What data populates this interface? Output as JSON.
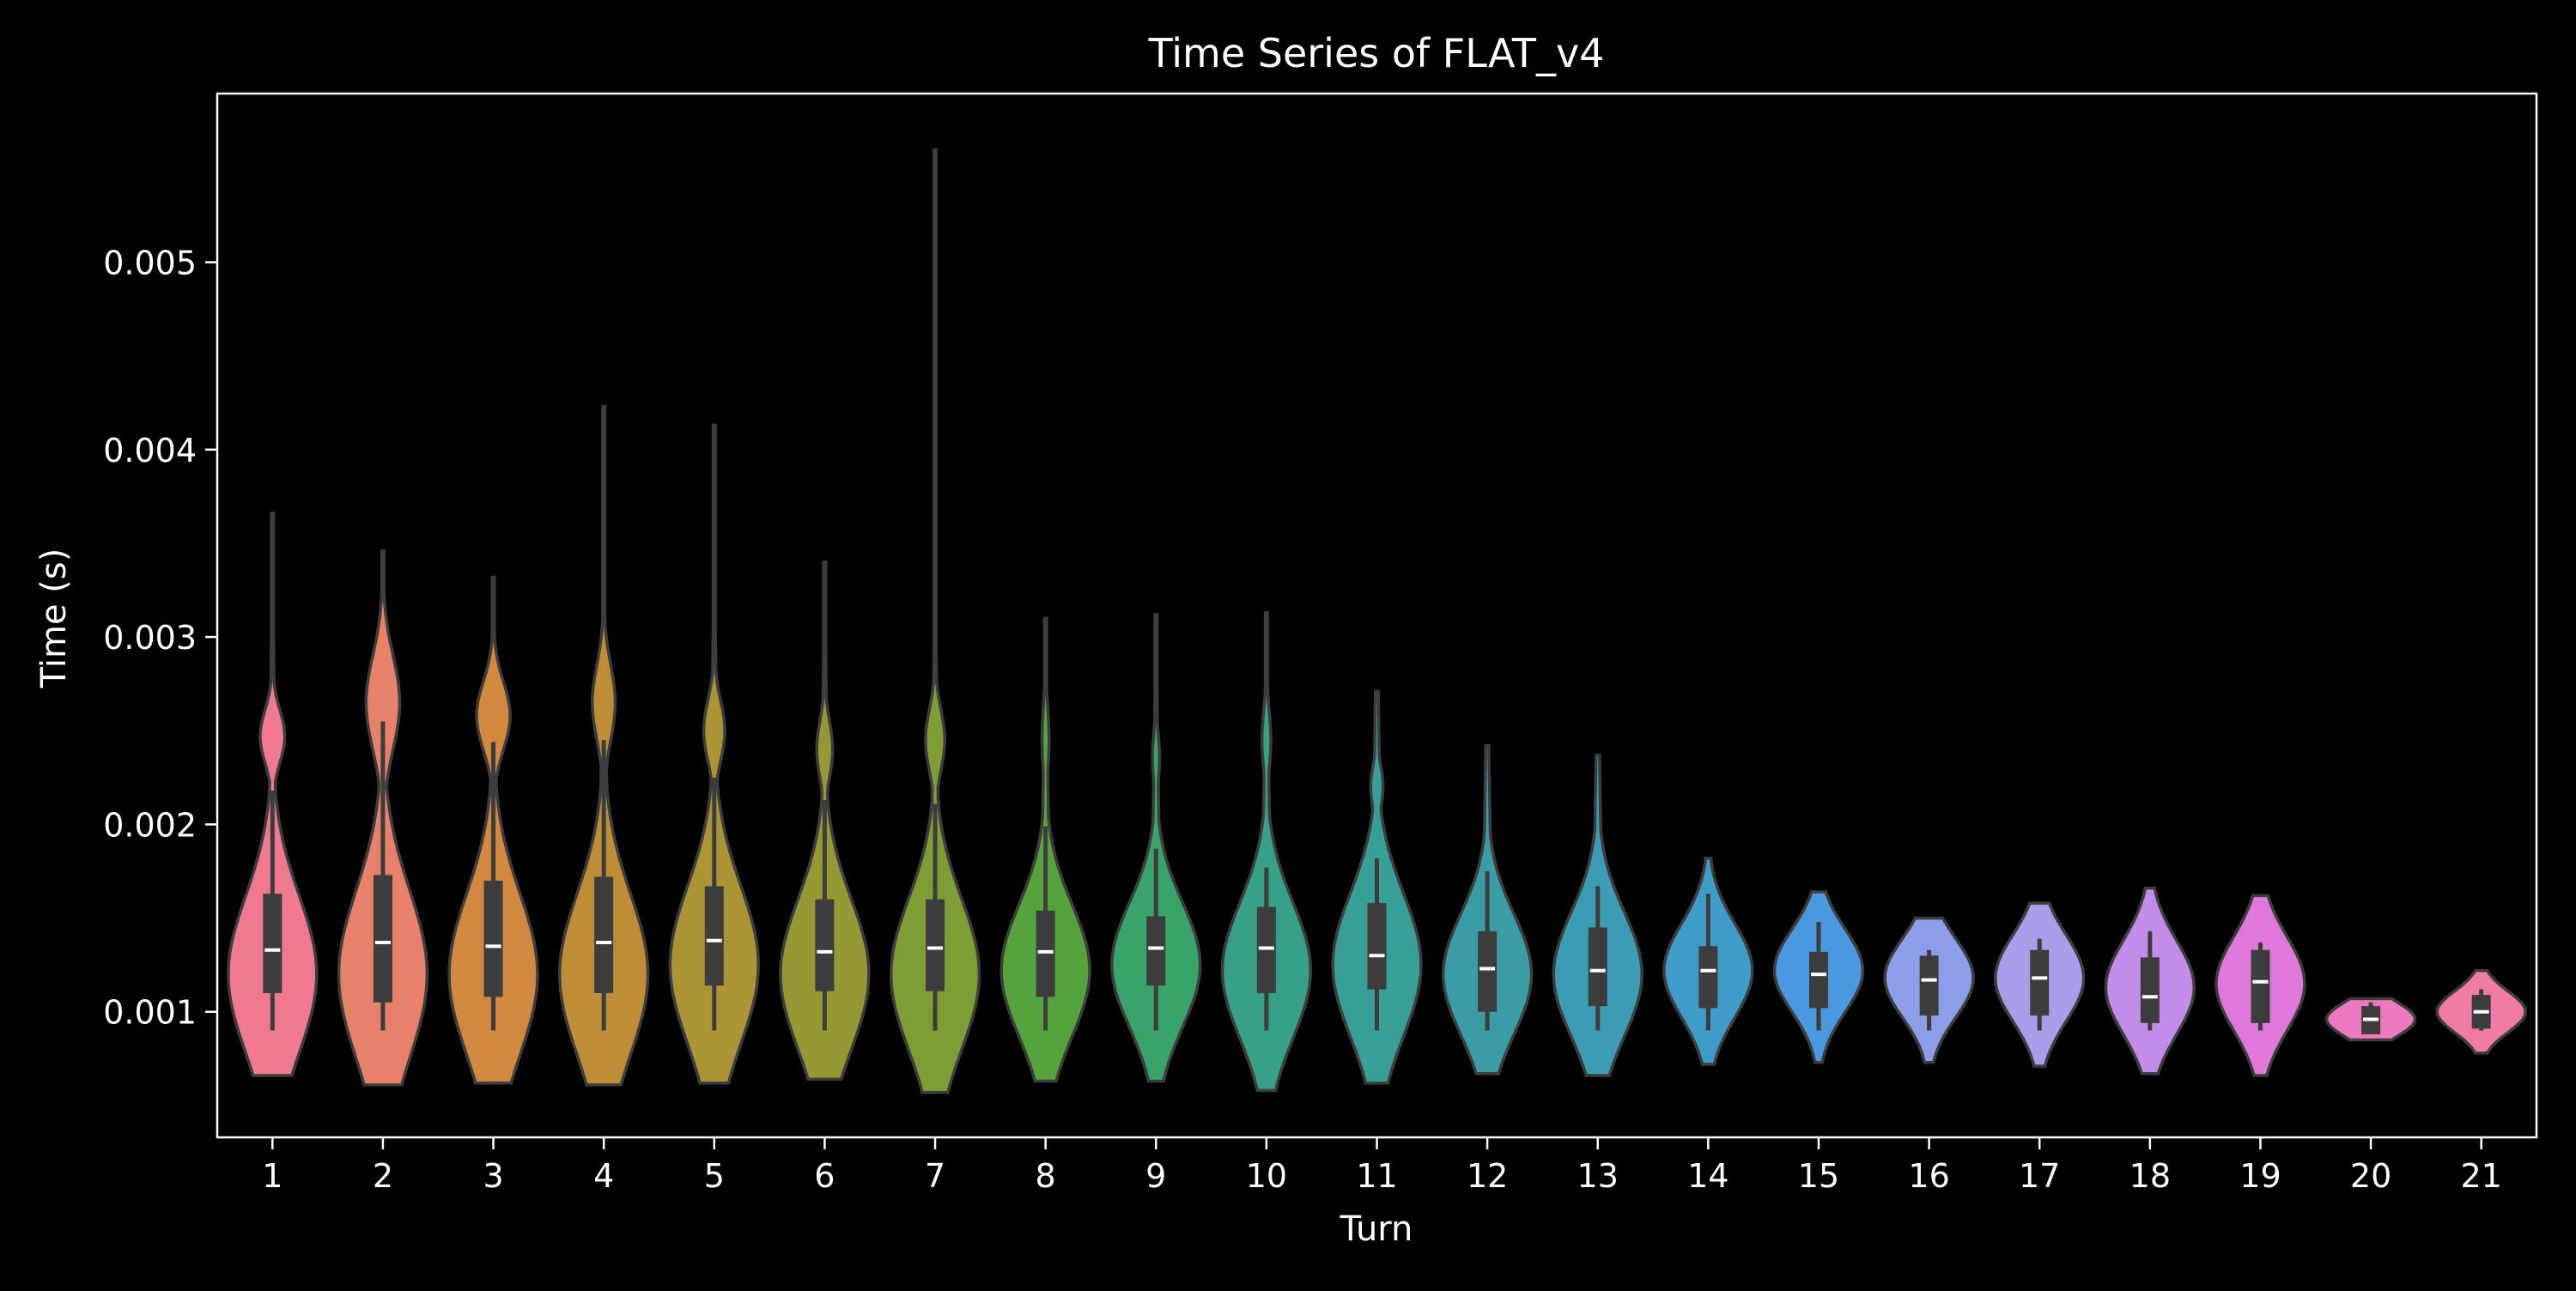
{
  "chart_data": {
    "type": "violin",
    "title": "Time Series of FLAT_v4",
    "xlabel": "Turn",
    "ylabel": "Time (s)",
    "categories": [
      "1",
      "2",
      "3",
      "4",
      "5",
      "6",
      "7",
      "8",
      "9",
      "10",
      "11",
      "12",
      "13",
      "14",
      "15",
      "16",
      "17",
      "18",
      "19",
      "20",
      "21"
    ],
    "yticks": [
      0.001,
      0.002,
      0.003,
      0.004,
      0.005
    ],
    "ytick_labels": [
      "0.001",
      "0.002",
      "0.003",
      "0.004",
      "0.005"
    ],
    "ylim": [
      0.00033,
      0.0059
    ],
    "grid": false,
    "colors": {
      "background": "#000000",
      "text": "#ffffff",
      "axes": "#ffffff",
      "violin_edge": "#3d3d3d",
      "box": "#3d3d3d",
      "median": "#ffffff"
    },
    "violins": [
      {
        "turn": "1",
        "color": "#f0798f",
        "min": 0.00066,
        "max": 0.00366,
        "q1": 0.0011,
        "median": 0.00133,
        "q3": 0.00163,
        "whisker_low": 0.0009,
        "whisker_high": 0.00218,
        "bulk_center": 0.0012,
        "bulk_width": 0.00042,
        "modes": [
          [
            0.00247,
            0.00014,
            0.28
          ]
        ]
      },
      {
        "turn": "2",
        "color": "#e8816a",
        "min": 0.00061,
        "max": 0.00346,
        "q1": 0.00105,
        "median": 0.00137,
        "q3": 0.00173,
        "whisker_low": 0.0009,
        "whisker_high": 0.00255,
        "bulk_center": 0.0012,
        "bulk_width": 0.00045,
        "modes": [
          [
            0.00265,
            0.00025,
            0.38
          ]
        ]
      },
      {
        "turn": "3",
        "color": "#d3883f",
        "min": 0.00062,
        "max": 0.00332,
        "q1": 0.00108,
        "median": 0.00135,
        "q3": 0.0017,
        "whisker_low": 0.0009,
        "whisker_high": 0.00244,
        "bulk_center": 0.0012,
        "bulk_width": 0.00043,
        "modes": [
          [
            0.00258,
            0.00018,
            0.38
          ]
        ]
      },
      {
        "turn": "4",
        "color": "#c08d37",
        "min": 0.00061,
        "max": 0.00423,
        "q1": 0.0011,
        "median": 0.00137,
        "q3": 0.00172,
        "whisker_low": 0.0009,
        "whisker_high": 0.00245,
        "bulk_center": 0.0012,
        "bulk_width": 0.00043,
        "modes": [
          [
            0.00265,
            0.0002,
            0.26
          ]
        ]
      },
      {
        "turn": "5",
        "color": "#ab9433",
        "min": 0.00062,
        "max": 0.00413,
        "q1": 0.00114,
        "median": 0.00138,
        "q3": 0.00167,
        "whisker_low": 0.0009,
        "whisker_high": 0.00225,
        "bulk_center": 0.00125,
        "bulk_width": 0.00042,
        "modes": [
          [
            0.0025,
            0.00016,
            0.24
          ]
        ]
      },
      {
        "turn": "6",
        "color": "#969834",
        "min": 0.00064,
        "max": 0.0034,
        "q1": 0.00111,
        "median": 0.00132,
        "q3": 0.0016,
        "whisker_low": 0.0009,
        "whisker_high": 0.00213,
        "bulk_center": 0.0012,
        "bulk_width": 0.0004,
        "modes": [
          [
            0.0024,
            0.00015,
            0.18
          ]
        ]
      },
      {
        "turn": "7",
        "color": "#7f9d35",
        "min": 0.00057,
        "max": 0.0056,
        "q1": 0.00111,
        "median": 0.00134,
        "q3": 0.0016,
        "whisker_low": 0.0009,
        "whisker_high": 0.00211,
        "bulk_center": 0.0012,
        "bulk_width": 0.0004,
        "modes": [
          [
            0.00245,
            0.00016,
            0.22
          ]
        ]
      },
      {
        "turn": "8",
        "color": "#55a33b",
        "min": 0.00063,
        "max": 0.0031,
        "q1": 0.00108,
        "median": 0.00132,
        "q3": 0.00154,
        "whisker_low": 0.0009,
        "whisker_high": 0.00199,
        "bulk_center": 0.00122,
        "bulk_width": 0.00035,
        "modes": [
          [
            0.00245,
            0.00018,
            0.08
          ]
        ]
      },
      {
        "turn": "9",
        "color": "#39a46a",
        "min": 0.00063,
        "max": 0.00312,
        "q1": 0.00114,
        "median": 0.00134,
        "q3": 0.00151,
        "whisker_low": 0.0009,
        "whisker_high": 0.00187,
        "bulk_center": 0.00125,
        "bulk_width": 0.00033,
        "modes": [
          [
            0.00235,
            0.00014,
            0.08
          ]
        ]
      },
      {
        "turn": "10",
        "color": "#37a187",
        "min": 0.00058,
        "max": 0.00313,
        "q1": 0.0011,
        "median": 0.00134,
        "q3": 0.00156,
        "whisker_low": 0.0009,
        "whisker_high": 0.00177,
        "bulk_center": 0.00122,
        "bulk_width": 0.00036,
        "modes": [
          [
            0.00245,
            0.00016,
            0.1
          ]
        ]
      },
      {
        "turn": "11",
        "color": "#389f98",
        "min": 0.00062,
        "max": 0.00271,
        "q1": 0.00112,
        "median": 0.0013,
        "q3": 0.00158,
        "whisker_low": 0.0009,
        "whisker_high": 0.00182,
        "bulk_center": 0.00125,
        "bulk_width": 0.00038,
        "modes": [
          [
            0.0022,
            0.00012,
            0.14
          ]
        ]
      },
      {
        "turn": "12",
        "color": "#3a9da6",
        "min": 0.00067,
        "max": 0.00242,
        "q1": 0.001,
        "median": 0.00123,
        "q3": 0.00143,
        "whisker_low": 0.0009,
        "whisker_high": 0.00175,
        "bulk_center": 0.0012,
        "bulk_width": 0.00032,
        "modes": [
          [
            0.00205,
            0.0001,
            0.05
          ]
        ]
      },
      {
        "turn": "13",
        "color": "#3b9cb4",
        "min": 0.00066,
        "max": 0.00237,
        "q1": 0.00103,
        "median": 0.00122,
        "q3": 0.00145,
        "whisker_low": 0.0009,
        "whisker_high": 0.00167,
        "bulk_center": 0.0012,
        "bulk_width": 0.00033,
        "modes": [
          [
            0.0021,
            0.0001,
            0.06
          ]
        ]
      },
      {
        "turn": "14",
        "color": "#3f9cc8",
        "min": 0.00072,
        "max": 0.00182,
        "q1": 0.00102,
        "median": 0.00122,
        "q3": 0.00135,
        "whisker_low": 0.0009,
        "whisker_high": 0.00163,
        "bulk_center": 0.00122,
        "bulk_width": 0.00025,
        "modes": []
      },
      {
        "turn": "15",
        "color": "#4a98e0",
        "min": 0.00073,
        "max": 0.00164,
        "q1": 0.00102,
        "median": 0.0012,
        "q3": 0.00132,
        "whisker_low": 0.0009,
        "whisker_high": 0.00148,
        "bulk_center": 0.00122,
        "bulk_width": 0.00022,
        "modes": []
      },
      {
        "turn": "16",
        "color": "#8c9de9",
        "min": 0.00073,
        "max": 0.0015,
        "q1": 0.00098,
        "median": 0.00117,
        "q3": 0.0013,
        "whisker_low": 0.0009,
        "whisker_high": 0.00133,
        "bulk_center": 0.00118,
        "bulk_width": 0.00021,
        "modes": []
      },
      {
        "turn": "17",
        "color": "#a99ce9",
        "min": 0.00071,
        "max": 0.00158,
        "q1": 0.00098,
        "median": 0.00118,
        "q3": 0.00133,
        "whisker_low": 0.0009,
        "whisker_high": 0.00139,
        "bulk_center": 0.00118,
        "bulk_width": 0.00023,
        "modes": []
      },
      {
        "turn": "18",
        "color": "#c28de8",
        "min": 0.00067,
        "max": 0.00166,
        "q1": 0.00094,
        "median": 0.00108,
        "q3": 0.00129,
        "whisker_low": 0.0009,
        "whisker_high": 0.00143,
        "bulk_center": 0.00113,
        "bulk_width": 0.00025,
        "modes": []
      },
      {
        "turn": "19",
        "color": "#df78da",
        "min": 0.00066,
        "max": 0.00162,
        "q1": 0.00094,
        "median": 0.00116,
        "q3": 0.00133,
        "whisker_low": 0.0009,
        "whisker_high": 0.00137,
        "bulk_center": 0.00115,
        "bulk_width": 0.00025,
        "modes": []
      },
      {
        "turn": "20",
        "color": "#ec78c0",
        "min": 0.00085,
        "max": 0.00107,
        "q1": 0.00088,
        "median": 0.00096,
        "q3": 0.00103,
        "whisker_low": 0.00088,
        "whisker_high": 0.00105,
        "bulk_center": 0.00096,
        "bulk_width": 9e-05,
        "modes": []
      },
      {
        "turn": "21",
        "color": "#f07ba8",
        "min": 0.00078,
        "max": 0.00122,
        "q1": 0.00091,
        "median": 0.001,
        "q3": 0.00109,
        "whisker_low": 0.0009,
        "whisker_high": 0.00112,
        "bulk_center": 0.001,
        "bulk_width": 0.00011,
        "modes": []
      }
    ]
  }
}
